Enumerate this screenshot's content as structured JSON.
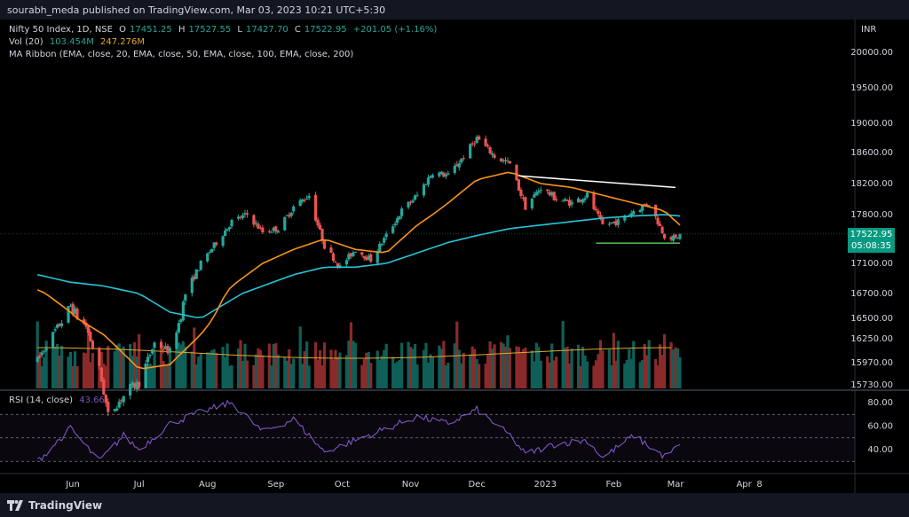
{
  "publisher_line": "sourabh_meda published on TradingView.com, Mar 03, 2023 10:21 UTC+5:30",
  "legend": {
    "symbol": "Nifty 50 Index, 1D, NSE",
    "open_label": "O",
    "open": "17451.25",
    "high_label": "H",
    "high": "17527.55",
    "low_label": "L",
    "low": "17427.70",
    "close_label": "C",
    "close": "17522.95",
    "change": "+201.05 (+1.16%)",
    "vol_label": "Vol (20)",
    "vol_value": "103.454M",
    "vol_ma": "247.276M",
    "ribbon": "MA Ribbon (EMA, close, 20, EMA, close, 50, EMA, close, 100, EMA, close, 200)",
    "rsi_label": "RSI (14, close)",
    "rsi_value": "43.66"
  },
  "currency": "INR",
  "last_price": {
    "price": "17522.95",
    "countdown": "05:08:35"
  },
  "branding": "TradingView",
  "colors": {
    "up": "#26a69a",
    "down": "#ef5350",
    "ema20": "#f7931a",
    "ema50": "#26c6da",
    "vol_ma": "#e0a92e",
    "rsi": "#7e57c2",
    "trend_white": "#ffffff",
    "support_green": "#4caf50"
  },
  "chart_data": {
    "type": "candlestick",
    "price_axis": {
      "ticks": [
        20000,
        19500,
        19000,
        18600,
        18200,
        17800,
        17100,
        16700,
        16500,
        16250,
        15970,
        15730
      ],
      "tick_labels": [
        "20000.00",
        "19500.00",
        "19000.00",
        "18600.00",
        "18200.00",
        "17800.00",
        "17100.00",
        "16700.00",
        "16500.00",
        "16250.00",
        "15970.00",
        "15730.00"
      ]
    },
    "rsi_axis": {
      "ticks": [
        80,
        60,
        40
      ],
      "tick_labels": [
        "80.00",
        "60.00",
        "40.00"
      ],
      "upper_band": 70,
      "middle": 50,
      "lower_band": 30
    },
    "x_axis_labels": [
      "Jun",
      "Jul",
      "Aug",
      "Sep",
      "Oct",
      "Nov",
      "Dec",
      "2023",
      "Feb",
      "Mar",
      "Apr",
      "8"
    ],
    "price_path": [
      [
        "2022-05-16",
        16000
      ],
      [
        "2022-05-24",
        16350
      ],
      [
        "2022-05-31",
        16600
      ],
      [
        "2022-06-07",
        16400
      ],
      [
        "2022-06-13",
        15900
      ],
      [
        "2022-06-17",
        15400
      ],
      [
        "2022-06-27",
        15700
      ],
      [
        "2022-07-01",
        15750
      ],
      [
        "2022-07-08",
        16200
      ],
      [
        "2022-07-15",
        16100
      ],
      [
        "2022-07-22",
        16700
      ],
      [
        "2022-07-29",
        17100
      ],
      [
        "2022-08-05",
        17400
      ],
      [
        "2022-08-12",
        17700
      ],
      [
        "2022-08-19",
        17800
      ],
      [
        "2022-08-26",
        17550
      ],
      [
        "2022-09-02",
        17600
      ],
      [
        "2022-09-09",
        17900
      ],
      [
        "2022-09-16",
        18050
      ],
      [
        "2022-09-23",
        17350
      ],
      [
        "2022-09-30",
        17050
      ],
      [
        "2022-10-07",
        17300
      ],
      [
        "2022-10-14",
        17150
      ],
      [
        "2022-10-21",
        17500
      ],
      [
        "2022-10-28",
        17850
      ],
      [
        "2022-11-04",
        18050
      ],
      [
        "2022-11-11",
        18350
      ],
      [
        "2022-11-18",
        18300
      ],
      [
        "2022-11-25",
        18550
      ],
      [
        "2022-12-01",
        18800
      ],
      [
        "2022-12-09",
        18550
      ],
      [
        "2022-12-16",
        18450
      ],
      [
        "2022-12-23",
        17900
      ],
      [
        "2022-12-30",
        18150
      ],
      [
        "2023-01-06",
        18000
      ],
      [
        "2023-01-13",
        17950
      ],
      [
        "2023-01-20",
        18050
      ],
      [
        "2023-01-27",
        17650
      ],
      [
        "2023-02-03",
        17700
      ],
      [
        "2023-02-10",
        17850
      ],
      [
        "2023-02-17",
        17950
      ],
      [
        "2023-02-24",
        17500
      ],
      [
        "2023-03-01",
        17450
      ],
      [
        "2023-03-03",
        17522.95
      ]
    ],
    "ema20": [
      [
        "2022-05-16",
        16750
      ],
      [
        "2022-05-31",
        16550
      ],
      [
        "2022-06-15",
        16300
      ],
      [
        "2022-07-01",
        15900
      ],
      [
        "2022-07-15",
        15950
      ],
      [
        "2022-07-29",
        16300
      ],
      [
        "2022-08-12",
        16800
      ],
      [
        "2022-08-26",
        17100
      ],
      [
        "2022-09-09",
        17300
      ],
      [
        "2022-09-23",
        17450
      ],
      [
        "2022-10-07",
        17300
      ],
      [
        "2022-10-21",
        17250
      ],
      [
        "2022-11-04",
        17650
      ],
      [
        "2022-11-18",
        17950
      ],
      [
        "2022-12-01",
        18250
      ],
      [
        "2022-12-16",
        18350
      ],
      [
        "2022-12-30",
        18200
      ],
      [
        "2023-01-13",
        18150
      ],
      [
        "2023-01-27",
        18050
      ],
      [
        "2023-02-10",
        17950
      ],
      [
        "2023-02-24",
        17850
      ],
      [
        "2023-03-03",
        17650
      ]
    ],
    "ema50": [
      [
        "2022-05-16",
        16950
      ],
      [
        "2022-05-31",
        16850
      ],
      [
        "2022-06-15",
        16800
      ],
      [
        "2022-07-01",
        16700
      ],
      [
        "2022-07-15",
        16550
      ],
      [
        "2022-07-29",
        16500
      ],
      [
        "2022-08-12",
        16650
      ],
      [
        "2022-08-26",
        16800
      ],
      [
        "2022-09-09",
        16950
      ],
      [
        "2022-09-23",
        17050
      ],
      [
        "2022-10-07",
        17050
      ],
      [
        "2022-10-21",
        17100
      ],
      [
        "2022-11-04",
        17250
      ],
      [
        "2022-11-18",
        17400
      ],
      [
        "2022-12-01",
        17500
      ],
      [
        "2022-12-16",
        17600
      ],
      [
        "2022-12-30",
        17650
      ],
      [
        "2023-01-13",
        17700
      ],
      [
        "2023-01-27",
        17750
      ],
      [
        "2023-02-10",
        17780
      ],
      [
        "2023-02-24",
        17800
      ],
      [
        "2023-03-03",
        17780
      ]
    ],
    "trendlines": [
      {
        "name": "resistance",
        "color": "#ffffff",
        "from": [
          "2022-12-20",
          18300
        ],
        "to": [
          "2023-03-01",
          18150
        ]
      },
      {
        "name": "support",
        "color": "#4caf50",
        "from": [
          "2023-01-24",
          17390
        ],
        "to": [
          "2023-03-03",
          17390
        ]
      }
    ],
    "volume_ma_level": 247.276,
    "rsi_path": [
      [
        "2022-05-16",
        30
      ],
      [
        "2022-05-31",
        58
      ],
      [
        "2022-06-13",
        30
      ],
      [
        "2022-06-24",
        52
      ],
      [
        "2022-07-01",
        40
      ],
      [
        "2022-07-15",
        62
      ],
      [
        "2022-07-29",
        72
      ],
      [
        "2022-08-12",
        80
      ],
      [
        "2022-08-26",
        55
      ],
      [
        "2022-09-09",
        66
      ],
      [
        "2022-09-23",
        38
      ],
      [
        "2022-10-07",
        48
      ],
      [
        "2022-10-21",
        58
      ],
      [
        "2022-11-04",
        68
      ],
      [
        "2022-11-18",
        62
      ],
      [
        "2022-12-01",
        74
      ],
      [
        "2022-12-16",
        52
      ],
      [
        "2022-12-23",
        36
      ],
      [
        "2023-01-06",
        45
      ],
      [
        "2023-01-20",
        48
      ],
      [
        "2023-01-27",
        33
      ],
      [
        "2023-02-10",
        52
      ],
      [
        "2023-02-24",
        34
      ],
      [
        "2023-03-03",
        43.66
      ]
    ]
  }
}
